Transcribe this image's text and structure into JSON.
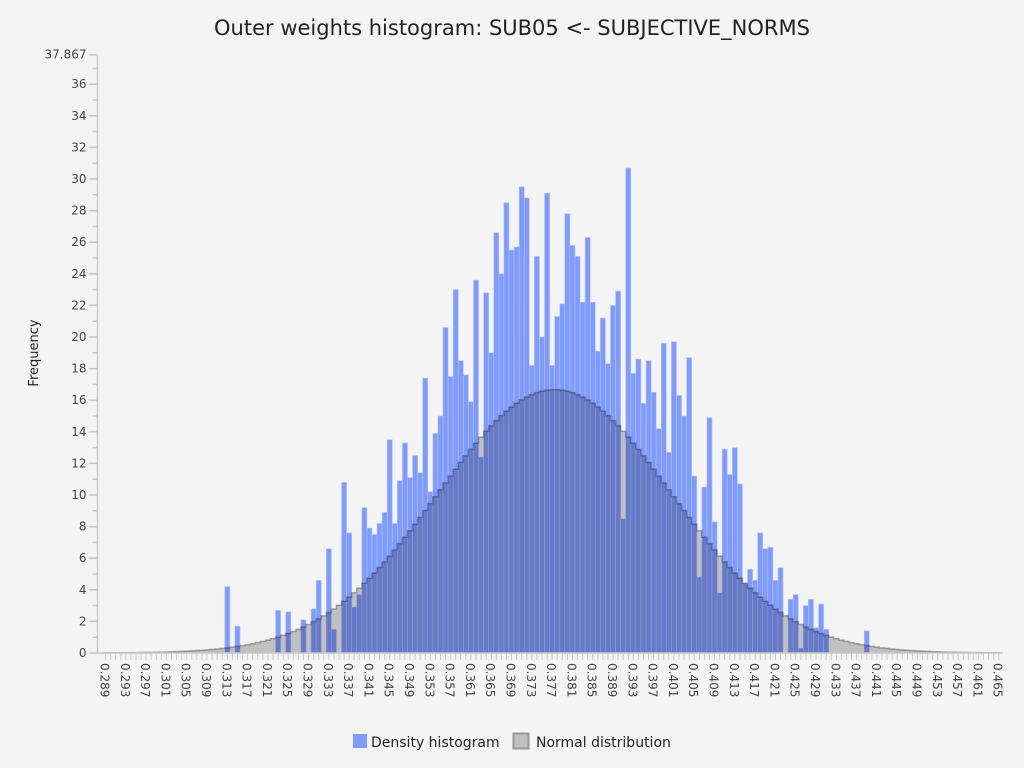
{
  "chart_data": {
    "type": "bar",
    "title": "Outer weights histogram: SUB05 <- SUBJECTIVE_NORMS",
    "xlabel": "",
    "ylabel": "Frequency",
    "ylim": [
      0,
      37.867
    ],
    "y_top_label": "37.867",
    "y_ticks": [
      0,
      2,
      4,
      6,
      8,
      10,
      12,
      14,
      16,
      18,
      20,
      22,
      24,
      26,
      28,
      30,
      32,
      34,
      36
    ],
    "x_categories_range": [
      0.289,
      0.465
    ],
    "bin_width": 0.001,
    "x_tick_labels": [
      "0.289",
      "0.293",
      "0.297",
      "0.301",
      "0.305",
      "0.309",
      "0.313",
      "0.317",
      "0.321",
      "0.325",
      "0.329",
      "0.333",
      "0.337",
      "0.341",
      "0.345",
      "0.349",
      "0.353",
      "0.357",
      "0.361",
      "0.365",
      "0.369",
      "0.373",
      "0.377",
      "0.381",
      "0.385",
      "0.389",
      "0.393",
      "0.397",
      "0.401",
      "0.405",
      "0.409",
      "0.413",
      "0.417",
      "0.421",
      "0.425",
      "0.429",
      "0.433",
      "0.437",
      "0.441",
      "0.445",
      "0.449",
      "0.453",
      "0.457",
      "0.461",
      "0.465"
    ],
    "grid": false,
    "legend_placement": "bottom",
    "series": [
      {
        "name": "Density histogram",
        "color": "#809bff",
        "bin_start": 0.313,
        "values": [
          4.2,
          0,
          1.7,
          0,
          0,
          0,
          0,
          0,
          0,
          0,
          2.7,
          0,
          2.6,
          0,
          0,
          2.1,
          0,
          2.8,
          4.6,
          0,
          6.6,
          1.5,
          0,
          10.8,
          7.6,
          2.9,
          3.7,
          9.2,
          7.9,
          7.5,
          8.2,
          8.9,
          13.5,
          8.2,
          10.9,
          13.3,
          11.1,
          12.5,
          11.4,
          17.4,
          10.2,
          13.9,
          15.0,
          20.6,
          17.5,
          23.0,
          18.5,
          17.6,
          15.9,
          23.6,
          12.4,
          22.8,
          19.0,
          26.6,
          24.0,
          28.5,
          25.5,
          25.7,
          29.5,
          28.8,
          18.2,
          25.1,
          20.0,
          29.1,
          18.2,
          21.3,
          22.1,
          27.8,
          25.8,
          25.1,
          22.2,
          26.3,
          22.2,
          19.1,
          21.2,
          18.3,
          22.0,
          22.9,
          8.5,
          30.7,
          17.7,
          18.6,
          15.8,
          18.5,
          16.5,
          14.2,
          19.6,
          12.7,
          19.7,
          16.3,
          15.0,
          18.7,
          11.2,
          4.8,
          10.5,
          14.9,
          8.3,
          3.8,
          12.9,
          11.3,
          13.0,
          10.7,
          4.4,
          5.3,
          4.6,
          7.6,
          6.6,
          6.7,
          4.6,
          5.4,
          0,
          3.4,
          3.7,
          0.3,
          3.0,
          3.4,
          1.6,
          3.1,
          1.5,
          0,
          0,
          0,
          0,
          0,
          0,
          0,
          1.4
        ]
      },
      {
        "name": "Normal distribution",
        "color": "#c0c0c0",
        "mean": 0.3775,
        "sd": 0.023,
        "peak": 16.67
      }
    ]
  }
}
